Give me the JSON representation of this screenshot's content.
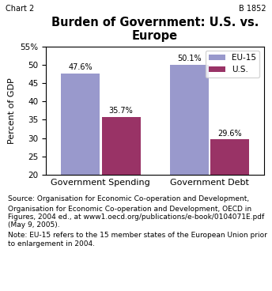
{
  "chart_data": {
    "type": "bar",
    "title": "Burden of Government: U.S. vs. Europe",
    "ylabel": "Percent of GDP",
    "categories": [
      "Government Spending",
      "Government Debt"
    ],
    "series": [
      {
        "name": "EU-15",
        "color": "#9999cc",
        "values": [
          47.6,
          50.1
        ],
        "value_labels": [
          "47.6%",
          "50.1%"
        ]
      },
      {
        "name": "U.S.",
        "color": "#993366",
        "values": [
          35.7,
          29.6
        ],
        "value_labels": [
          "35.7%",
          "29.6%"
        ]
      }
    ],
    "ylim": [
      20,
      55
    ],
    "yticks": [
      20,
      25,
      30,
      35,
      40,
      45,
      50,
      {
        "value": 55,
        "label": "55%"
      }
    ],
    "grid": false,
    "legend": "upper right",
    "data_labels": true,
    "annotations": [
      "Chart 2",
      "B 1852",
      "Source: Organisation for Economic Co-operation and Development, ",
      "Organisation for Economic Co-operation and Development, OECD in Figures, 2004 ed., at www1.oecd.org/publications/e-book/0104071E.pdf (May 9, 2005).",
      "Note: EU-15 refers to the 15 member states of the European Union prior to enlargement in 2004."
    ]
  }
}
